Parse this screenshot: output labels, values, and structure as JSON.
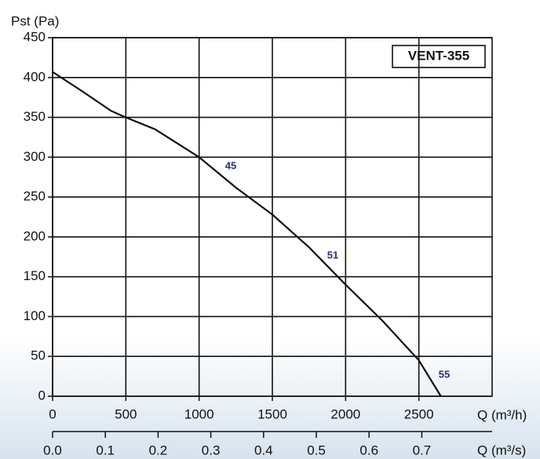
{
  "chart_data": {
    "type": "line",
    "title": "VENT-355",
    "y_label": "Pst (Pa)",
    "x_label": "Q (m³/h)",
    "x2_label": "Q (m³/s)",
    "x": [
      0,
      200,
      400,
      500,
      700,
      1000,
      1250,
      1500,
      1750,
      2000,
      2250,
      2500,
      2650
    ],
    "series": [
      {
        "name": "VENT-355",
        "color": "#111111",
        "values": [
          407,
          383,
          358,
          350,
          335,
          300,
          262,
          228,
          187,
          140,
          95,
          45,
          0
        ]
      }
    ],
    "annotations": [
      "45",
      "51",
      "55"
    ],
    "xlim": [
      0,
      3000
    ],
    "xticks": [
      0,
      500,
      1000,
      1500,
      2000,
      2500
    ],
    "ylim": [
      0,
      450
    ],
    "yticks": [
      0,
      50,
      100,
      150,
      200,
      250,
      300,
      350,
      400,
      450
    ],
    "x2lim": [
      0,
      0.8333
    ],
    "x2ticks": [
      {
        "value": 0,
        "label": "0.0"
      },
      0.1,
      0.2,
      0.3,
      0.4,
      0.5,
      0.6,
      0.7
    ],
    "grid": true
  }
}
